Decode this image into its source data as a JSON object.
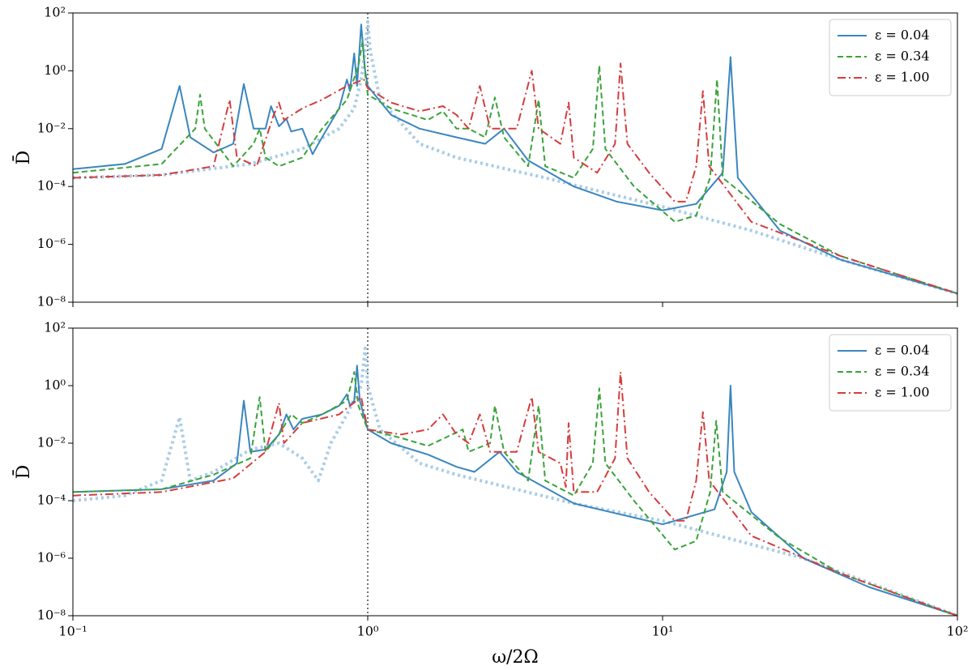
{
  "chart_data": [
    {
      "type": "line",
      "ylabel": "D̄",
      "xlog": true,
      "ylog": true,
      "xlim": [
        0.1,
        100
      ],
      "ylim": [
        1e-08,
        100
      ],
      "yticks": [
        {
          "value": 1e-08,
          "label": "10⁻⁸"
        },
        {
          "value": 1e-06,
          "label": "10⁻⁶"
        },
        {
          "value": 0.0001,
          "label": "10⁻⁴"
        },
        {
          "value": 0.01,
          "label": "10⁻²"
        },
        {
          "value": 1,
          "label": "10⁰"
        },
        {
          "value": 100,
          "label": "10²"
        }
      ],
      "vline": 1,
      "legend": "upper right",
      "series": [
        {
          "name": "ε = 0.04",
          "color": "#3a86bf",
          "style": "solid",
          "x": [
            0.1,
            0.15,
            0.2,
            0.23,
            0.25,
            0.3,
            0.35,
            0.38,
            0.41,
            0.45,
            0.47,
            0.5,
            0.53,
            0.55,
            0.6,
            0.65,
            0.7,
            0.8,
            0.85,
            0.87,
            0.9,
            0.92,
            0.95,
            0.98,
            1.0,
            1.2,
            1.5,
            2,
            2.5,
            2.9,
            3.5,
            5,
            7,
            10,
            13,
            16,
            17,
            18,
            25,
            40,
            100
          ],
          "values": [
            0.0004,
            0.0006,
            0.002,
            0.3,
            0.005,
            0.0015,
            0.003,
            0.35,
            0.01,
            0.01,
            0.06,
            0.012,
            0.022,
            0.008,
            0.01,
            0.0013,
            0.005,
            0.05,
            0.5,
            0.2,
            4,
            0.3,
            40,
            1,
            0.3,
            0.03,
            0.01,
            0.005,
            0.003,
            0.01,
            0.0008,
            0.0001,
            3e-05,
            1.5e-05,
            2.5e-05,
            0.0003,
            3,
            0.0002,
            3e-06,
            3e-07,
            2e-08
          ]
        },
        {
          "name": "ε = 0.34",
          "color": "#3aa33a",
          "style": "dashed",
          "x": [
            0.1,
            0.2,
            0.26,
            0.27,
            0.28,
            0.35,
            0.41,
            0.43,
            0.45,
            0.5,
            0.6,
            0.7,
            0.85,
            0.93,
            0.96,
            0.98,
            1.0,
            1.2,
            1.6,
            1.8,
            2,
            2.2,
            2.5,
            2.7,
            2.9,
            3.5,
            3.8,
            4,
            5,
            5.8,
            6.1,
            6.4,
            8,
            11,
            13,
            14.5,
            15.3,
            16,
            25,
            40,
            100
          ],
          "values": [
            0.0003,
            0.0006,
            0.01,
            0.15,
            0.01,
            0.0005,
            0.003,
            0.01,
            0.001,
            0.0005,
            0.001,
            0.01,
            0.1,
            1.5,
            10,
            0.8,
            0.15,
            0.05,
            0.02,
            0.04,
            0.01,
            0.01,
            0.005,
            0.12,
            0.005,
            0.0005,
            0.1,
            0.0005,
            0.0002,
            0.002,
            1.5,
            0.002,
            0.0001,
            6e-06,
            1e-05,
            0.0002,
            0.5,
            0.0002,
            5e-06,
            4e-07,
            2e-08
          ]
        },
        {
          "name": "ε = 1.00",
          "color": "#d43d3d",
          "style": "dashdot",
          "x": [
            0.1,
            0.2,
            0.3,
            0.34,
            0.36,
            0.42,
            0.48,
            0.5,
            0.52,
            0.6,
            0.7,
            0.85,
            0.97,
            1.0,
            1.2,
            1.5,
            1.8,
            2,
            2.2,
            2.4,
            2.6,
            3.2,
            3.6,
            3.8,
            4.5,
            4.8,
            5,
            6,
            6.9,
            7.2,
            7.6,
            9,
            11,
            12,
            13,
            13.7,
            14.4,
            20,
            40,
            100
          ],
          "values": [
            0.0002,
            0.00025,
            0.0005,
            0.1,
            0.001,
            0.0005,
            0.03,
            0.08,
            0.02,
            0.05,
            0.1,
            0.3,
            0.5,
            0.25,
            0.08,
            0.04,
            0.06,
            0.03,
            0.01,
            0.3,
            0.01,
            0.01,
            1,
            0.01,
            0.003,
            0.08,
            0.001,
            0.0003,
            0.003,
            1.8,
            0.003,
            0.0003,
            3e-05,
            3e-05,
            0.0005,
            0.2,
            0.0005,
            6e-06,
            4e-07,
            2e-08
          ]
        },
        {
          "color": "#a8cce6",
          "style": "dotted",
          "x": [
            0.1,
            0.2,
            0.4,
            0.6,
            0.8,
            0.9,
            0.95,
            0.98,
            1.0,
            1.02,
            1.1,
            1.5,
            2,
            4,
            10,
            20,
            40,
            100
          ],
          "values": [
            0.0002,
            0.00025,
            0.0006,
            0.002,
            0.01,
            0.05,
            0.5,
            5,
            50,
            5,
            0.1,
            0.003,
            0.001,
            0.0002,
            2e-05,
            3e-06,
            3e-07,
            2e-08
          ]
        }
      ]
    },
    {
      "type": "line",
      "ylabel": "D̄",
      "xlabel": "ω/2Ω",
      "xlog": true,
      "ylog": true,
      "xlim": [
        0.1,
        100
      ],
      "ylim": [
        1e-08,
        100
      ],
      "xticks": [
        {
          "value": 0.1,
          "label": "10⁻¹"
        },
        {
          "value": 1,
          "label": "10⁰"
        },
        {
          "value": 10,
          "label": "10¹"
        },
        {
          "value": 100,
          "label": "10²"
        }
      ],
      "yticks": [
        {
          "value": 1e-08,
          "label": "10⁻⁸"
        },
        {
          "value": 1e-06,
          "label": "10⁻⁶"
        },
        {
          "value": 0.0001,
          "label": "10⁻⁴"
        },
        {
          "value": 0.01,
          "label": "10⁻²"
        },
        {
          "value": 1,
          "label": "10⁰"
        },
        {
          "value": 100,
          "label": "10²"
        }
      ],
      "vline": 1,
      "legend": "upper right",
      "series": [
        {
          "name": "ε = 0.04",
          "color": "#3a86bf",
          "style": "solid",
          "x": [
            0.1,
            0.2,
            0.3,
            0.36,
            0.38,
            0.4,
            0.45,
            0.5,
            0.53,
            0.56,
            0.6,
            0.7,
            0.8,
            0.85,
            0.87,
            0.9,
            0.92,
            0.94,
            1.0,
            1.2,
            1.6,
            2,
            2.3,
            2.8,
            3.2,
            5,
            10,
            15,
            16.5,
            17,
            17.5,
            20,
            30,
            50,
            100
          ],
          "values": [
            0.0002,
            0.00025,
            0.0005,
            0.002,
            0.3,
            0.005,
            0.006,
            0.02,
            0.1,
            0.03,
            0.07,
            0.1,
            0.2,
            0.5,
            0.2,
            0.3,
            5,
            0.3,
            0.03,
            0.01,
            0.004,
            0.0015,
            0.001,
            0.005,
            0.001,
            8e-05,
            1.5e-05,
            5e-05,
            0.001,
            1,
            0.001,
            4e-05,
            1e-06,
            1e-07,
            1e-08
          ]
        },
        {
          "name": "ε = 0.34",
          "color": "#3aa33a",
          "style": "dashed",
          "x": [
            0.1,
            0.2,
            0.3,
            0.4,
            0.43,
            0.45,
            0.5,
            0.55,
            0.6,
            0.7,
            0.85,
            0.9,
            0.93,
            1.0,
            1.3,
            1.6,
            2.1,
            2.2,
            2.6,
            2.7,
            2.9,
            3.5,
            3.8,
            4.0,
            5,
            5.8,
            6.1,
            6.4,
            8,
            11,
            13,
            14.5,
            15.2,
            16,
            25,
            40,
            100
          ],
          "values": [
            0.0002,
            0.00025,
            0.0008,
            0.003,
            0.4,
            0.005,
            0.02,
            0.1,
            0.05,
            0.1,
            0.3,
            3,
            0.2,
            0.03,
            0.015,
            0.008,
            0.03,
            0.005,
            0.01,
            0.2,
            0.005,
            0.0005,
            0.2,
            0.0005,
            0.00015,
            0.002,
            0.8,
            0.002,
            0.0001,
            2e-06,
            4e-06,
            0.0002,
            0.06,
            0.0002,
            5e-06,
            3e-07,
            1e-08
          ]
        },
        {
          "name": "ε = 1.00",
          "color": "#d43d3d",
          "style": "dashdot",
          "x": [
            0.1,
            0.2,
            0.35,
            0.45,
            0.5,
            0.52,
            0.6,
            0.8,
            0.95,
            1.0,
            1.3,
            1.6,
            1.8,
            2,
            2.2,
            2.4,
            2.6,
            3.2,
            3.6,
            3.8,
            4.5,
            4.7,
            4.8,
            5,
            6,
            6.9,
            7.2,
            7.6,
            9,
            11,
            12,
            13,
            13.7,
            14.4,
            20,
            40,
            100
          ],
          "values": [
            0.00015,
            0.0002,
            0.0006,
            0.005,
            0.25,
            0.01,
            0.05,
            0.1,
            0.4,
            0.03,
            0.02,
            0.03,
            0.1,
            0.02,
            0.01,
            0.1,
            0.005,
            0.005,
            0.4,
            0.005,
            0.002,
            0.0003,
            0.05,
            0.0002,
            0.0002,
            0.003,
            3,
            0.003,
            0.0002,
            2e-05,
            2e-05,
            0.0005,
            0.12,
            0.0005,
            6e-06,
            3e-07,
            1e-08
          ]
        },
        {
          "color": "#a8cce6",
          "style": "dotted",
          "x": [
            0.1,
            0.15,
            0.2,
            0.23,
            0.25,
            0.3,
            0.4,
            0.5,
            0.6,
            0.68,
            0.75,
            0.85,
            0.95,
            0.98,
            1.0,
            1.1,
            1.5,
            2,
            5,
            10,
            30,
            100
          ],
          "values": [
            0.0001,
            0.00015,
            0.0005,
            0.08,
            0.0005,
            0.001,
            0.006,
            0.01,
            0.003,
            0.0005,
            0.01,
            0.1,
            1,
            20,
            1,
            0.03,
            0.002,
            0.0008,
            8e-05,
            2e-05,
            1e-06,
            1e-08
          ]
        }
      ]
    }
  ]
}
